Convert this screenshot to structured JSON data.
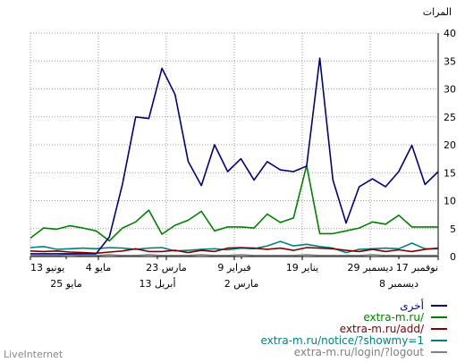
{
  "chart_data": {
    "type": "line",
    "ylabel": "المرات",
    "ylim": [
      0,
      40
    ],
    "y_ticks": [
      0,
      5,
      10,
      15,
      20,
      25,
      30,
      35,
      40
    ],
    "x_upper_labels": [
      "17 نوفمبر",
      "29 ديسمبر",
      "19 يناير",
      "9 فبراير",
      "23 مارس",
      "4 مايو",
      "13 يونيو"
    ],
    "x_lower_labels": [
      "8 ديسمبر",
      "2 مارس",
      "13 أبريل",
      "25 مايو"
    ],
    "grid": true,
    "legend_position": "bottom-right",
    "series": [
      {
        "name": "أخرى",
        "color": "#000080",
        "values": [
          0.5,
          0.5,
          0.5,
          0.5,
          0.5,
          0.5,
          3.5,
          13,
          25,
          24.7,
          33.7,
          29,
          17,
          12.7,
          20,
          15.2,
          17.5,
          13.7,
          17,
          15.5,
          15.2,
          16.2,
          35.5,
          13.7,
          6,
          12.5,
          13.9,
          12.5,
          15.2,
          19.9,
          12.9,
          15.2
        ]
      },
      {
        "name": "extra-m.ru/",
        "color": "#008000",
        "values": [
          3.3,
          5.1,
          4.9,
          5.5,
          5.1,
          4.6,
          2.8,
          5.1,
          6.2,
          8.3,
          4,
          5.6,
          6.5,
          8.1,
          4.6,
          5.3,
          5.3,
          5.1,
          7.6,
          6.1,
          6.9,
          16.3,
          4.1,
          4.1,
          4.6,
          5.1,
          6.2,
          5.8,
          7.4,
          5.3,
          5.3,
          5.3
        ]
      },
      {
        "name": "extra-m.ru/add/",
        "color": "#800000",
        "values": [
          1,
          0.9,
          1,
          0.8,
          0.7,
          0.6,
          0.8,
          1,
          1.4,
          0.9,
          0.9,
          1.1,
          0.7,
          1.1,
          0.9,
          1.5,
          1.6,
          1.5,
          1.3,
          1.5,
          1.1,
          1.6,
          1.5,
          1.4,
          1.1,
          0.9,
          1.3,
          0.9,
          1.2,
          0.9,
          1.3,
          1.5
        ]
      },
      {
        "name": "extra-m.ru/notice/?showmy=1",
        "color": "#008080",
        "values": [
          1.6,
          1.8,
          1.3,
          1.4,
          1.5,
          1.4,
          1.6,
          1.5,
          1.3,
          1.5,
          1.6,
          1,
          1.1,
          1.3,
          1.4,
          1.2,
          1.5,
          1.4,
          1.9,
          2.7,
          1.9,
          2.2,
          1.8,
          1.5,
          0.7,
          1.3,
          1.4,
          1.5,
          1.4,
          2.4,
          1.4,
          1.4
        ]
      },
      {
        "name": "extra-m.ru/login/?logout",
        "color": "#808080",
        "values": [
          0.2,
          0.2,
          0.2,
          0.3,
          0.2,
          0.2,
          0.3,
          0.2,
          0.2,
          0.3,
          0.2,
          0.2,
          0.2,
          0.3,
          0.2,
          0.2,
          0.3,
          0.2,
          0.2,
          0.2,
          0.2,
          0.3,
          0.2,
          0.2,
          0.2,
          0.2,
          0.3,
          0.2,
          0.2,
          0.2,
          0.2,
          0.2
        ]
      }
    ]
  },
  "watermark": "LiveInternet"
}
